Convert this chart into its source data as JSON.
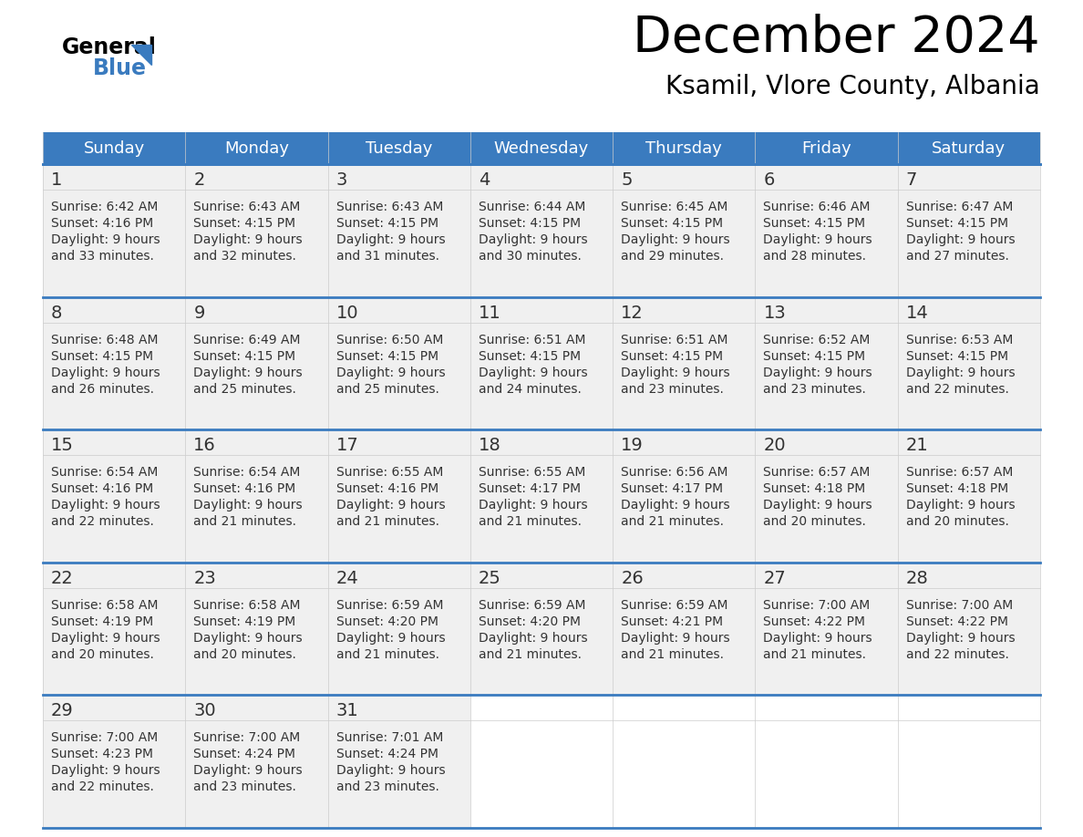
{
  "title": "December 2024",
  "subtitle": "Ksamil, Vlore County, Albania",
  "header_color": "#3a7bbf",
  "header_text_color": "#ffffff",
  "cell_bg_color": "#efefef",
  "border_color": "#3a7bbf",
  "text_color": "#333333",
  "days_of_week": [
    "Sunday",
    "Monday",
    "Tuesday",
    "Wednesday",
    "Thursday",
    "Friday",
    "Saturday"
  ],
  "weeks": [
    [
      {
        "day": "1",
        "sunrise": "6:42 AM",
        "sunset": "4:16 PM",
        "daylight": "9 hours",
        "daylight2": "and 33 minutes."
      },
      {
        "day": "2",
        "sunrise": "6:43 AM",
        "sunset": "4:15 PM",
        "daylight": "9 hours",
        "daylight2": "and 32 minutes."
      },
      {
        "day": "3",
        "sunrise": "6:43 AM",
        "sunset": "4:15 PM",
        "daylight": "9 hours",
        "daylight2": "and 31 minutes."
      },
      {
        "day": "4",
        "sunrise": "6:44 AM",
        "sunset": "4:15 PM",
        "daylight": "9 hours",
        "daylight2": "and 30 minutes."
      },
      {
        "day": "5",
        "sunrise": "6:45 AM",
        "sunset": "4:15 PM",
        "daylight": "9 hours",
        "daylight2": "and 29 minutes."
      },
      {
        "day": "6",
        "sunrise": "6:46 AM",
        "sunset": "4:15 PM",
        "daylight": "9 hours",
        "daylight2": "and 28 minutes."
      },
      {
        "day": "7",
        "sunrise": "6:47 AM",
        "sunset": "4:15 PM",
        "daylight": "9 hours",
        "daylight2": "and 27 minutes."
      }
    ],
    [
      {
        "day": "8",
        "sunrise": "6:48 AM",
        "sunset": "4:15 PM",
        "daylight": "9 hours",
        "daylight2": "and 26 minutes."
      },
      {
        "day": "9",
        "sunrise": "6:49 AM",
        "sunset": "4:15 PM",
        "daylight": "9 hours",
        "daylight2": "and 25 minutes."
      },
      {
        "day": "10",
        "sunrise": "6:50 AM",
        "sunset": "4:15 PM",
        "daylight": "9 hours",
        "daylight2": "and 25 minutes."
      },
      {
        "day": "11",
        "sunrise": "6:51 AM",
        "sunset": "4:15 PM",
        "daylight": "9 hours",
        "daylight2": "and 24 minutes."
      },
      {
        "day": "12",
        "sunrise": "6:51 AM",
        "sunset": "4:15 PM",
        "daylight": "9 hours",
        "daylight2": "and 23 minutes."
      },
      {
        "day": "13",
        "sunrise": "6:52 AM",
        "sunset": "4:15 PM",
        "daylight": "9 hours",
        "daylight2": "and 23 minutes."
      },
      {
        "day": "14",
        "sunrise": "6:53 AM",
        "sunset": "4:15 PM",
        "daylight": "9 hours",
        "daylight2": "and 22 minutes."
      }
    ],
    [
      {
        "day": "15",
        "sunrise": "6:54 AM",
        "sunset": "4:16 PM",
        "daylight": "9 hours",
        "daylight2": "and 22 minutes."
      },
      {
        "day": "16",
        "sunrise": "6:54 AM",
        "sunset": "4:16 PM",
        "daylight": "9 hours",
        "daylight2": "and 21 minutes."
      },
      {
        "day": "17",
        "sunrise": "6:55 AM",
        "sunset": "4:16 PM",
        "daylight": "9 hours",
        "daylight2": "and 21 minutes."
      },
      {
        "day": "18",
        "sunrise": "6:55 AM",
        "sunset": "4:17 PM",
        "daylight": "9 hours",
        "daylight2": "and 21 minutes."
      },
      {
        "day": "19",
        "sunrise": "6:56 AM",
        "sunset": "4:17 PM",
        "daylight": "9 hours",
        "daylight2": "and 21 minutes."
      },
      {
        "day": "20",
        "sunrise": "6:57 AM",
        "sunset": "4:18 PM",
        "daylight": "9 hours",
        "daylight2": "and 20 minutes."
      },
      {
        "day": "21",
        "sunrise": "6:57 AM",
        "sunset": "4:18 PM",
        "daylight": "9 hours",
        "daylight2": "and 20 minutes."
      }
    ],
    [
      {
        "day": "22",
        "sunrise": "6:58 AM",
        "sunset": "4:19 PM",
        "daylight": "9 hours",
        "daylight2": "and 20 minutes."
      },
      {
        "day": "23",
        "sunrise": "6:58 AM",
        "sunset": "4:19 PM",
        "daylight": "9 hours",
        "daylight2": "and 20 minutes."
      },
      {
        "day": "24",
        "sunrise": "6:59 AM",
        "sunset": "4:20 PM",
        "daylight": "9 hours",
        "daylight2": "and 21 minutes."
      },
      {
        "day": "25",
        "sunrise": "6:59 AM",
        "sunset": "4:20 PM",
        "daylight": "9 hours",
        "daylight2": "and 21 minutes."
      },
      {
        "day": "26",
        "sunrise": "6:59 AM",
        "sunset": "4:21 PM",
        "daylight": "9 hours",
        "daylight2": "and 21 minutes."
      },
      {
        "day": "27",
        "sunrise": "7:00 AM",
        "sunset": "4:22 PM",
        "daylight": "9 hours",
        "daylight2": "and 21 minutes."
      },
      {
        "day": "28",
        "sunrise": "7:00 AM",
        "sunset": "4:22 PM",
        "daylight": "9 hours",
        "daylight2": "and 22 minutes."
      }
    ],
    [
      {
        "day": "29",
        "sunrise": "7:00 AM",
        "sunset": "4:23 PM",
        "daylight": "9 hours",
        "daylight2": "and 22 minutes."
      },
      {
        "day": "30",
        "sunrise": "7:00 AM",
        "sunset": "4:24 PM",
        "daylight": "9 hours",
        "daylight2": "and 23 minutes."
      },
      {
        "day": "31",
        "sunrise": "7:01 AM",
        "sunset": "4:24 PM",
        "daylight": "9 hours",
        "daylight2": "and 23 minutes."
      },
      null,
      null,
      null,
      null
    ]
  ]
}
